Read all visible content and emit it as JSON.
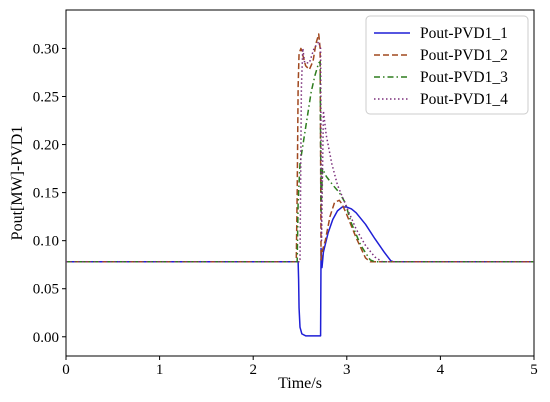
{
  "chart_data": {
    "type": "line",
    "xlabel": "Time/s",
    "ylabel": "Pout[MW]-PVD1",
    "xlim": [
      0,
      5
    ],
    "ylim": [
      -0.02,
      0.34
    ],
    "x_ticks": [
      "0",
      "1",
      "2",
      "3",
      "4",
      "5"
    ],
    "y_ticks": [
      "0.00",
      "0.05",
      "0.10",
      "0.15",
      "0.20",
      "0.25",
      "0.30"
    ],
    "grid": false,
    "legend_position": "top-right",
    "series": [
      {
        "name": "Pout-PVD1_1",
        "color": "#1f1fd6",
        "style": "solid",
        "points": [
          [
            0,
            0.078
          ],
          [
            2.48,
            0.078
          ],
          [
            2.485,
            0.06
          ],
          [
            2.49,
            0.03
          ],
          [
            2.5,
            0.01
          ],
          [
            2.52,
            0.003
          ],
          [
            2.56,
            0.001
          ],
          [
            2.72,
            0.001
          ],
          [
            2.725,
            0.092
          ],
          [
            2.735,
            0.072
          ],
          [
            2.75,
            0.088
          ],
          [
            2.8,
            0.108
          ],
          [
            2.85,
            0.122
          ],
          [
            2.9,
            0.131
          ],
          [
            2.95,
            0.135
          ],
          [
            3.0,
            0.135
          ],
          [
            3.05,
            0.133
          ],
          [
            3.1,
            0.129
          ],
          [
            3.2,
            0.117
          ],
          [
            3.3,
            0.102
          ],
          [
            3.4,
            0.088
          ],
          [
            3.47,
            0.079
          ],
          [
            3.5,
            0.078
          ],
          [
            5,
            0.078
          ]
        ]
      },
      {
        "name": "Pout-PVD1_2",
        "color": "#a0481f",
        "style": "dashed",
        "points": [
          [
            0,
            0.078
          ],
          [
            2.46,
            0.078
          ],
          [
            2.47,
            0.15
          ],
          [
            2.48,
            0.26
          ],
          [
            2.49,
            0.295
          ],
          [
            2.51,
            0.3
          ],
          [
            2.53,
            0.293
          ],
          [
            2.56,
            0.282
          ],
          [
            2.6,
            0.278
          ],
          [
            2.64,
            0.287
          ],
          [
            2.67,
            0.305
          ],
          [
            2.7,
            0.315
          ],
          [
            2.715,
            0.3
          ],
          [
            2.725,
            0.08
          ],
          [
            2.74,
            0.09
          ],
          [
            2.77,
            0.1
          ],
          [
            2.82,
            0.125
          ],
          [
            2.87,
            0.14
          ],
          [
            2.92,
            0.142
          ],
          [
            2.95,
            0.138
          ],
          [
            3.0,
            0.127
          ],
          [
            3.1,
            0.103
          ],
          [
            3.2,
            0.082
          ],
          [
            3.25,
            0.078
          ],
          [
            5,
            0.078
          ]
        ]
      },
      {
        "name": "Pout-PVD1_3",
        "color": "#2e7d1e",
        "style": "dashdot",
        "points": [
          [
            0,
            0.078
          ],
          [
            2.47,
            0.078
          ],
          [
            2.48,
            0.14
          ],
          [
            2.5,
            0.18
          ],
          [
            2.54,
            0.205
          ],
          [
            2.58,
            0.23
          ],
          [
            2.62,
            0.255
          ],
          [
            2.66,
            0.272
          ],
          [
            2.7,
            0.285
          ],
          [
            2.715,
            0.286
          ],
          [
            2.725,
            0.13
          ],
          [
            2.74,
            0.175
          ],
          [
            2.78,
            0.167
          ],
          [
            2.85,
            0.158
          ],
          [
            2.92,
            0.15
          ],
          [
            2.98,
            0.14
          ],
          [
            3.05,
            0.118
          ],
          [
            3.15,
            0.095
          ],
          [
            3.25,
            0.08
          ],
          [
            3.3,
            0.078
          ],
          [
            5,
            0.078
          ]
        ]
      },
      {
        "name": "Pout-PVD1_4",
        "color": "#7a2e7a",
        "style": "dotted",
        "points": [
          [
            0,
            0.078
          ],
          [
            2.5,
            0.078
          ],
          [
            2.505,
            0.14
          ],
          [
            2.515,
            0.26
          ],
          [
            2.53,
            0.3
          ],
          [
            2.55,
            0.285
          ],
          [
            2.6,
            0.285
          ],
          [
            2.65,
            0.3
          ],
          [
            2.7,
            0.307
          ],
          [
            2.72,
            0.3
          ],
          [
            2.73,
            0.1
          ],
          [
            2.75,
            0.235
          ],
          [
            2.78,
            0.21
          ],
          [
            2.84,
            0.18
          ],
          [
            2.9,
            0.158
          ],
          [
            2.96,
            0.144
          ],
          [
            3.02,
            0.13
          ],
          [
            3.1,
            0.112
          ],
          [
            3.2,
            0.095
          ],
          [
            3.3,
            0.083
          ],
          [
            3.38,
            0.078
          ],
          [
            5,
            0.078
          ]
        ]
      }
    ]
  }
}
